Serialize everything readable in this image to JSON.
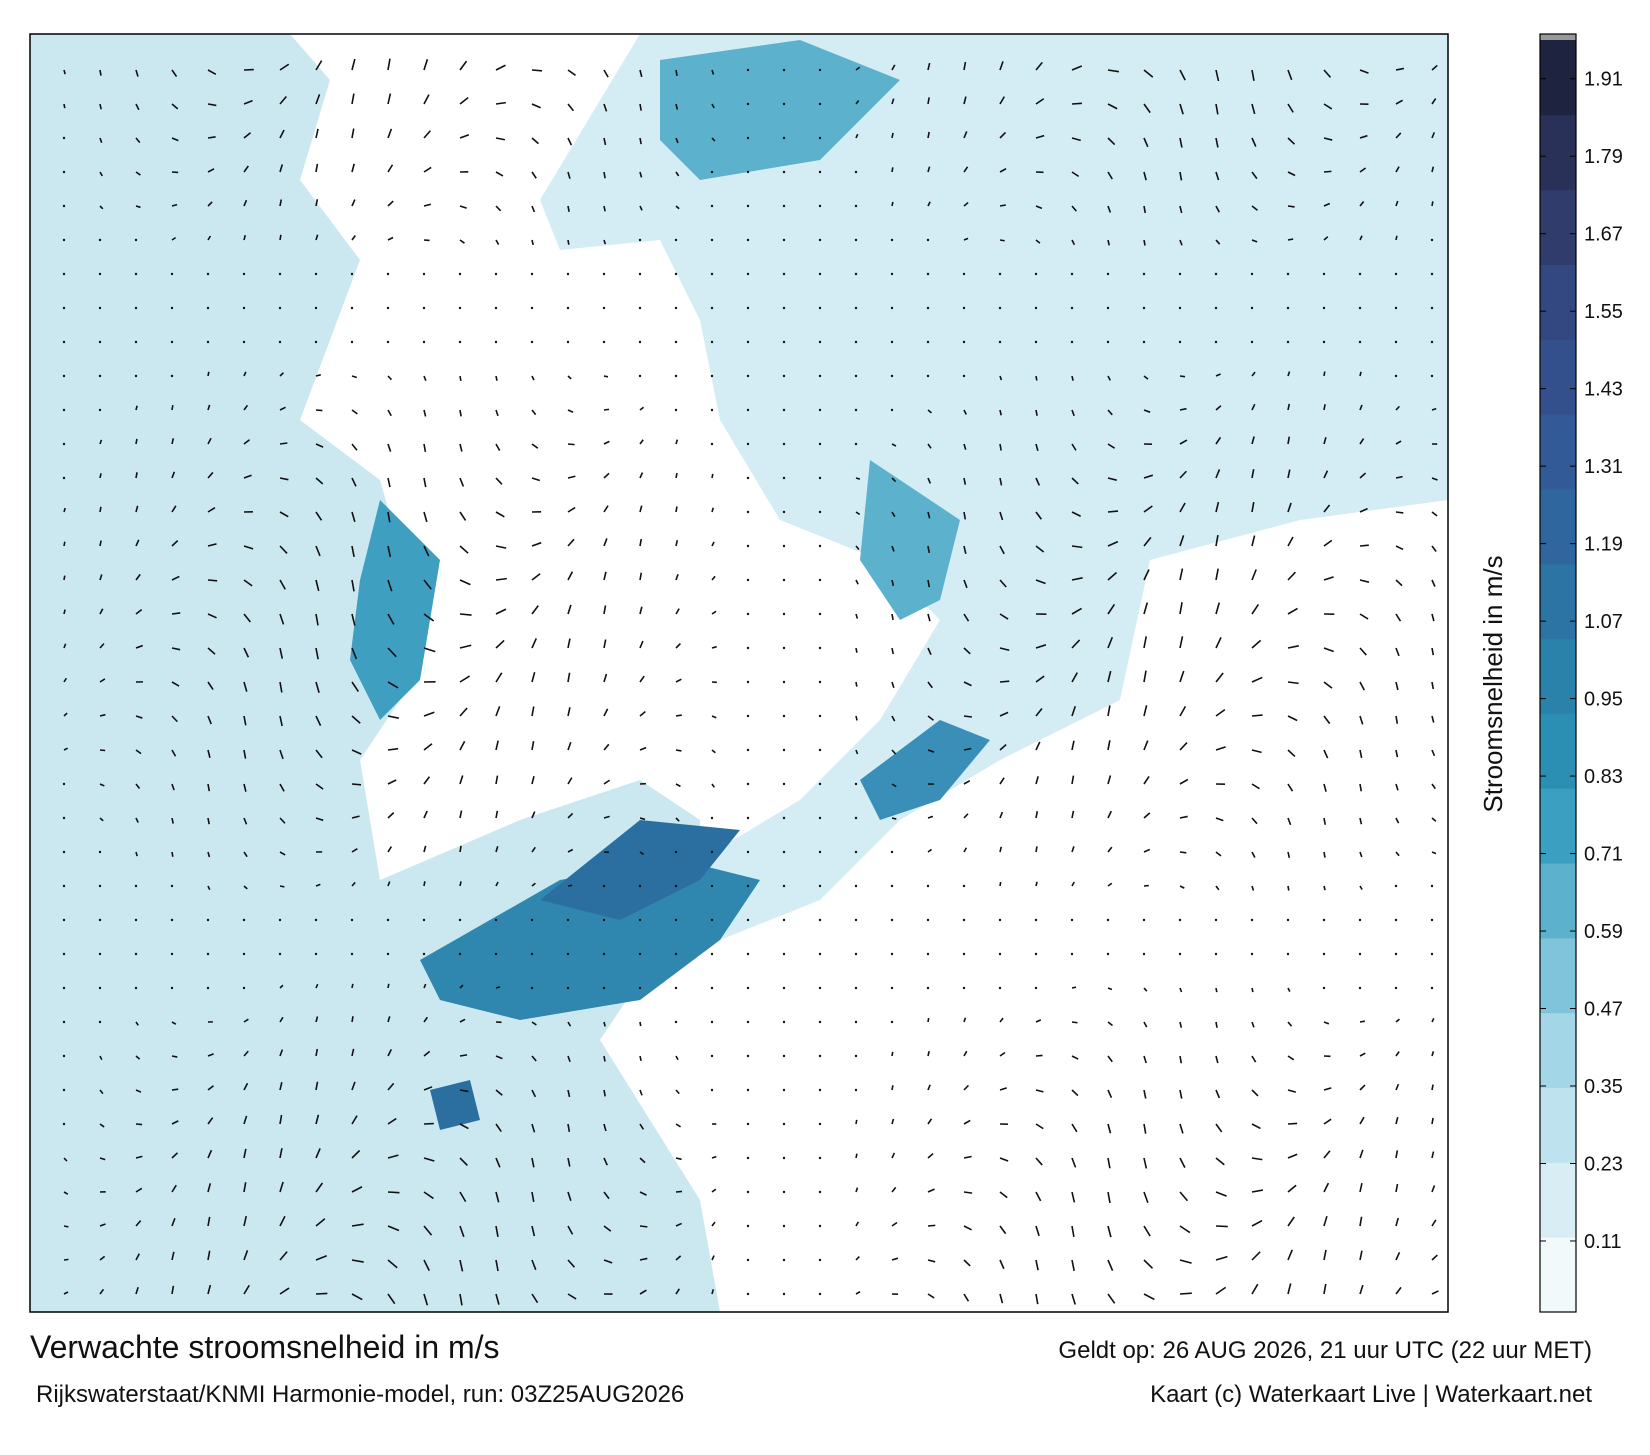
{
  "map": {
    "title": "Verwachte stroomsnelheid in m/s",
    "valid_time": "Geldt op: 26 AUG 2026, 21 uur UTC (22 uur MET)",
    "source": "Rijkswaterstaat/KNMI Harmonie-model, run: 03Z25AUG2026",
    "credit": "Kaart (c) Waterkaart Live | Waterkaart.net",
    "colorbar": {
      "label": "Stroomsnelheid in m/s",
      "lim": [
        0,
        1.97
      ],
      "ticks": [
        0.11,
        0.23,
        0.35,
        0.47,
        0.59,
        0.71,
        0.83,
        0.95,
        1.07,
        1.19,
        1.31,
        1.43,
        1.55,
        1.67,
        1.79,
        1.91
      ],
      "colors": [
        "#f2f9fb",
        "#d9eef4",
        "#bfe3ee",
        "#a3d6e6",
        "#7fc4da",
        "#5cb2cd",
        "#3a9fc0",
        "#2b8fb3",
        "#2a82aa",
        "#2c74a3",
        "#2e669d",
        "#315a96",
        "#33508c",
        "#334880",
        "#2f3c6c",
        "#2a3158",
        "#1e2340"
      ]
    }
  }
}
